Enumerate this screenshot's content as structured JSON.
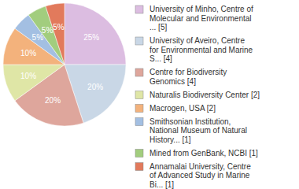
{
  "chart_data": {
    "type": "pie",
    "categories": [
      "University of Minho, Centre of\nMolecular and Environmental\n... [5]",
      "University of Aveiro, Centre\nfor Environmental and Marine\nS... [4]",
      "Centre for Biodiversity\nGenomics [4]",
      "Naturalis Biodiversity Center [2]",
      "Macrogen, USA [2]",
      "Smithsonian Institution,\nNational Museum of Natural\nHistory... [1]",
      "Mined from GenBank, NCBI [1]",
      "Annamalai University, Centre\nof Advanced Study in Marine\nBi... [1]"
    ],
    "values": [
      25,
      20,
      20,
      10,
      10,
      5,
      5,
      5
    ],
    "value_labels": [
      "25%",
      "20%",
      "20%",
      "10%",
      "10%",
      "5%",
      "5%",
      "5%"
    ],
    "colors": [
      "#dcbde1",
      "#c9d7e6",
      "#dea69c",
      "#dfe6a6",
      "#f3b27c",
      "#a3bfe2",
      "#a2cd7e",
      "#e27a5c"
    ],
    "data_labels": true,
    "legend": "right"
  }
}
